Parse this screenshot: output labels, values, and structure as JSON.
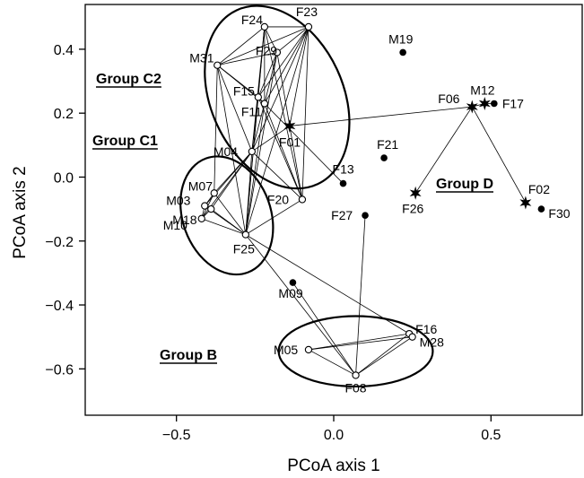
{
  "chart_data": {
    "type": "scatter",
    "xlabel": "PCoA axis 1",
    "ylabel": "PCoA axis 2",
    "xlim": [
      -0.79,
      0.79
    ],
    "ylim": [
      -0.745,
      0.54
    ],
    "x_ticks": [
      -0.5,
      0.0,
      0.5
    ],
    "x_tick_labels": [
      "−0.5",
      "0.0",
      "0.5"
    ],
    "y_ticks": [
      0.4,
      0.2,
      0.0,
      -0.2,
      -0.4,
      -0.6
    ],
    "y_tick_labels": [
      "0.4",
      "0.2",
      "0.0",
      "−0.2",
      "−0.4",
      "−0.6"
    ],
    "grid": false,
    "points": [
      {
        "id": "F23",
        "x": -0.08,
        "y": 0.47,
        "marker": "open"
      },
      {
        "id": "F24",
        "x": -0.22,
        "y": 0.47,
        "marker": "open"
      },
      {
        "id": "M31",
        "x": -0.37,
        "y": 0.35,
        "marker": "open"
      },
      {
        "id": "F29",
        "x": -0.18,
        "y": 0.39,
        "marker": "open"
      },
      {
        "id": "F15",
        "x": -0.24,
        "y": 0.25,
        "marker": "open"
      },
      {
        "id": "F11",
        "x": -0.22,
        "y": 0.23,
        "marker": "open"
      },
      {
        "id": "M04",
        "x": -0.26,
        "y": 0.08,
        "marker": "open"
      },
      {
        "id": "F20",
        "x": -0.1,
        "y": -0.07,
        "marker": "open"
      },
      {
        "id": "M07",
        "x": -0.38,
        "y": -0.05,
        "marker": "open"
      },
      {
        "id": "M03",
        "x": -0.41,
        "y": -0.09,
        "marker": "open"
      },
      {
        "id": "M10",
        "x": -0.42,
        "y": -0.13,
        "marker": "open"
      },
      {
        "id": "M18",
        "x": -0.39,
        "y": -0.1,
        "marker": "open"
      },
      {
        "id": "F25",
        "x": -0.28,
        "y": -0.18,
        "marker": "open"
      },
      {
        "id": "M05",
        "x": -0.08,
        "y": -0.54,
        "marker": "open"
      },
      {
        "id": "F08",
        "x": 0.07,
        "y": -0.62,
        "marker": "open"
      },
      {
        "id": "F16",
        "x": 0.24,
        "y": -0.49,
        "marker": "open"
      },
      {
        "id": "M28",
        "x": 0.25,
        "y": -0.5,
        "marker": "open"
      },
      {
        "id": "M19",
        "x": 0.22,
        "y": 0.39,
        "marker": "filled"
      },
      {
        "id": "F21",
        "x": 0.16,
        "y": 0.06,
        "marker": "filled"
      },
      {
        "id": "F13",
        "x": 0.03,
        "y": -0.02,
        "marker": "filled"
      },
      {
        "id": "F27",
        "x": 0.1,
        "y": -0.12,
        "marker": "filled"
      },
      {
        "id": "M09",
        "x": -0.13,
        "y": -0.33,
        "marker": "filled"
      },
      {
        "id": "F17",
        "x": 0.51,
        "y": 0.23,
        "marker": "filled"
      },
      {
        "id": "F30",
        "x": 0.66,
        "y": -0.1,
        "marker": "filled"
      },
      {
        "id": "F01",
        "x": -0.14,
        "y": 0.16,
        "marker": "star"
      },
      {
        "id": "F06",
        "x": 0.44,
        "y": 0.22,
        "marker": "star"
      },
      {
        "id": "M12",
        "x": 0.48,
        "y": 0.23,
        "marker": "star"
      },
      {
        "id": "F26",
        "x": 0.26,
        "y": -0.05,
        "marker": "star"
      },
      {
        "id": "F02",
        "x": 0.61,
        "y": -0.08,
        "marker": "star"
      }
    ],
    "edges": [
      [
        "F23",
        "F24"
      ],
      [
        "F23",
        "M31"
      ],
      [
        "F23",
        "F29"
      ],
      [
        "F23",
        "F15"
      ],
      [
        "F23",
        "F11"
      ],
      [
        "F23",
        "M04"
      ],
      [
        "F23",
        "F20"
      ],
      [
        "F23",
        "F25"
      ],
      [
        "F23",
        "F01"
      ],
      [
        "F24",
        "M31"
      ],
      [
        "F24",
        "F29"
      ],
      [
        "F24",
        "F15"
      ],
      [
        "F24",
        "F11"
      ],
      [
        "F24",
        "M04"
      ],
      [
        "F24",
        "F20"
      ],
      [
        "F24",
        "F25"
      ],
      [
        "F29",
        "M31"
      ],
      [
        "F29",
        "F15"
      ],
      [
        "F29",
        "F11"
      ],
      [
        "F29",
        "F20"
      ],
      [
        "F29",
        "F25"
      ],
      [
        "M31",
        "F15"
      ],
      [
        "M31",
        "F11"
      ],
      [
        "M31",
        "M04"
      ],
      [
        "M31",
        "M07"
      ],
      [
        "M31",
        "F25"
      ],
      [
        "F15",
        "F11"
      ],
      [
        "F15",
        "M04"
      ],
      [
        "F15",
        "F20"
      ],
      [
        "F15",
        "F25"
      ],
      [
        "F11",
        "M04"
      ],
      [
        "F11",
        "F20"
      ],
      [
        "F11",
        "F25"
      ],
      [
        "F11",
        "F13"
      ],
      [
        "M04",
        "F20"
      ],
      [
        "M04",
        "M07"
      ],
      [
        "M04",
        "M03"
      ],
      [
        "M04",
        "M10"
      ],
      [
        "M04",
        "M18"
      ],
      [
        "M04",
        "F25"
      ],
      [
        "M04",
        "F01"
      ],
      [
        "M07",
        "M03"
      ],
      [
        "M07",
        "M10"
      ],
      [
        "M07",
        "F25"
      ],
      [
        "M03",
        "M10"
      ],
      [
        "M03",
        "M18"
      ],
      [
        "M03",
        "F25"
      ],
      [
        "M10",
        "M18"
      ],
      [
        "M10",
        "F25"
      ],
      [
        "M18",
        "F25"
      ],
      [
        "F20",
        "F25"
      ],
      [
        "F25",
        "F16"
      ],
      [
        "F25",
        "F08"
      ],
      [
        "M09",
        "F08"
      ],
      [
        "F27",
        "F08"
      ],
      [
        "M05",
        "F16"
      ],
      [
        "M05",
        "M28"
      ],
      [
        "M05",
        "F08"
      ],
      [
        "F16",
        "M28"
      ],
      [
        "F16",
        "F08"
      ],
      [
        "M28",
        "F08"
      ],
      [
        "F01",
        "F06"
      ],
      [
        "F06",
        "M12"
      ],
      [
        "M12",
        "F17"
      ],
      [
        "F06",
        "F26"
      ],
      [
        "F06",
        "F02"
      ]
    ],
    "groups": [
      {
        "label": "Group C2",
        "cx": -0.18,
        "cy": 0.25,
        "rx": 0.21,
        "ry": 0.3,
        "rotate": -25
      },
      {
        "label": "Group C1",
        "cx": -0.34,
        "cy": -0.12,
        "rx": 0.14,
        "ry": 0.19,
        "rotate": -20
      },
      {
        "label": "Group B",
        "cx": 0.07,
        "cy": -0.545,
        "rx": 0.245,
        "ry": 0.11,
        "rotate": 0
      },
      {
        "label": "Group D",
        "text_x": 0.35,
        "text_y": -0.02
      }
    ]
  }
}
